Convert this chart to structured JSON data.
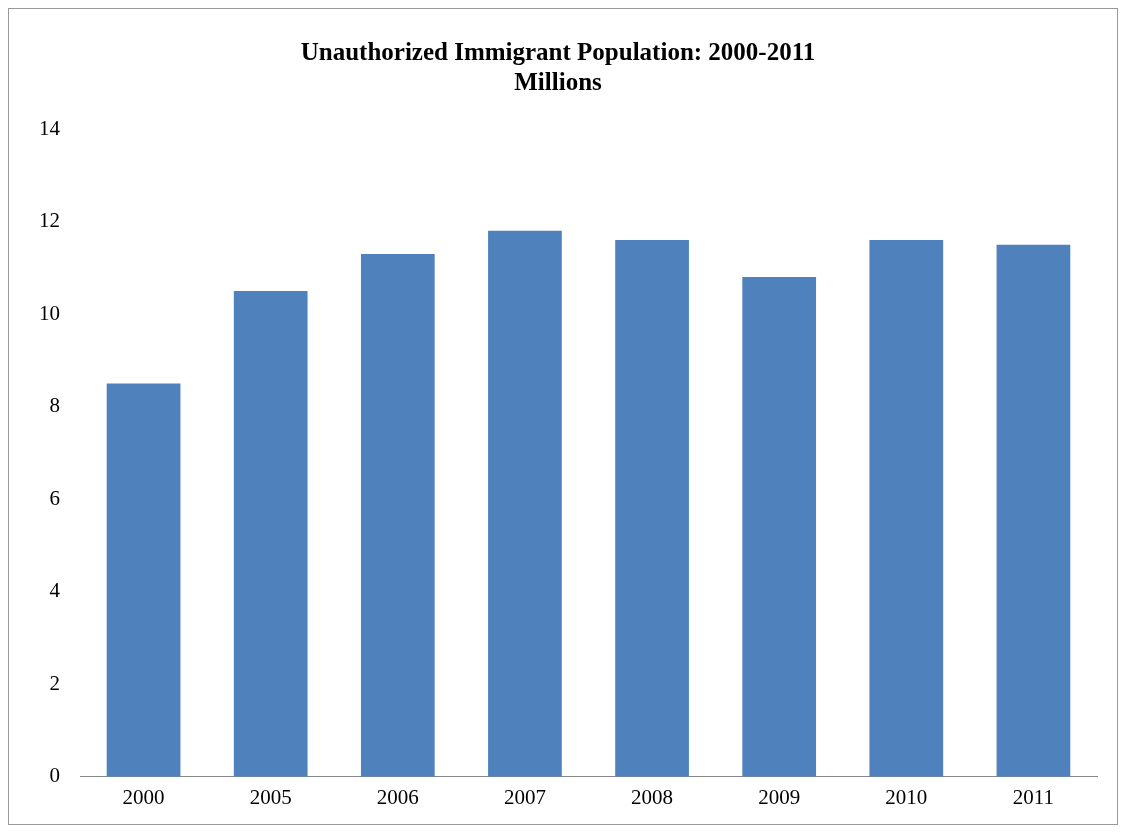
{
  "chart_data": {
    "type": "bar",
    "title": "Unauthorized Immigrant Population: 2000-2011",
    "subtitle": "Millions",
    "categories": [
      "2000",
      "2005",
      "2006",
      "2007",
      "2008",
      "2009",
      "2010",
      "2011"
    ],
    "values": [
      8.5,
      10.5,
      11.3,
      11.8,
      11.6,
      10.8,
      11.6,
      11.5
    ],
    "color": "#4f81bd",
    "ylim": [
      0,
      14
    ],
    "yticks": [
      0,
      2,
      4,
      6,
      8,
      10,
      12,
      14
    ],
    "grid": false,
    "legend": false
  }
}
